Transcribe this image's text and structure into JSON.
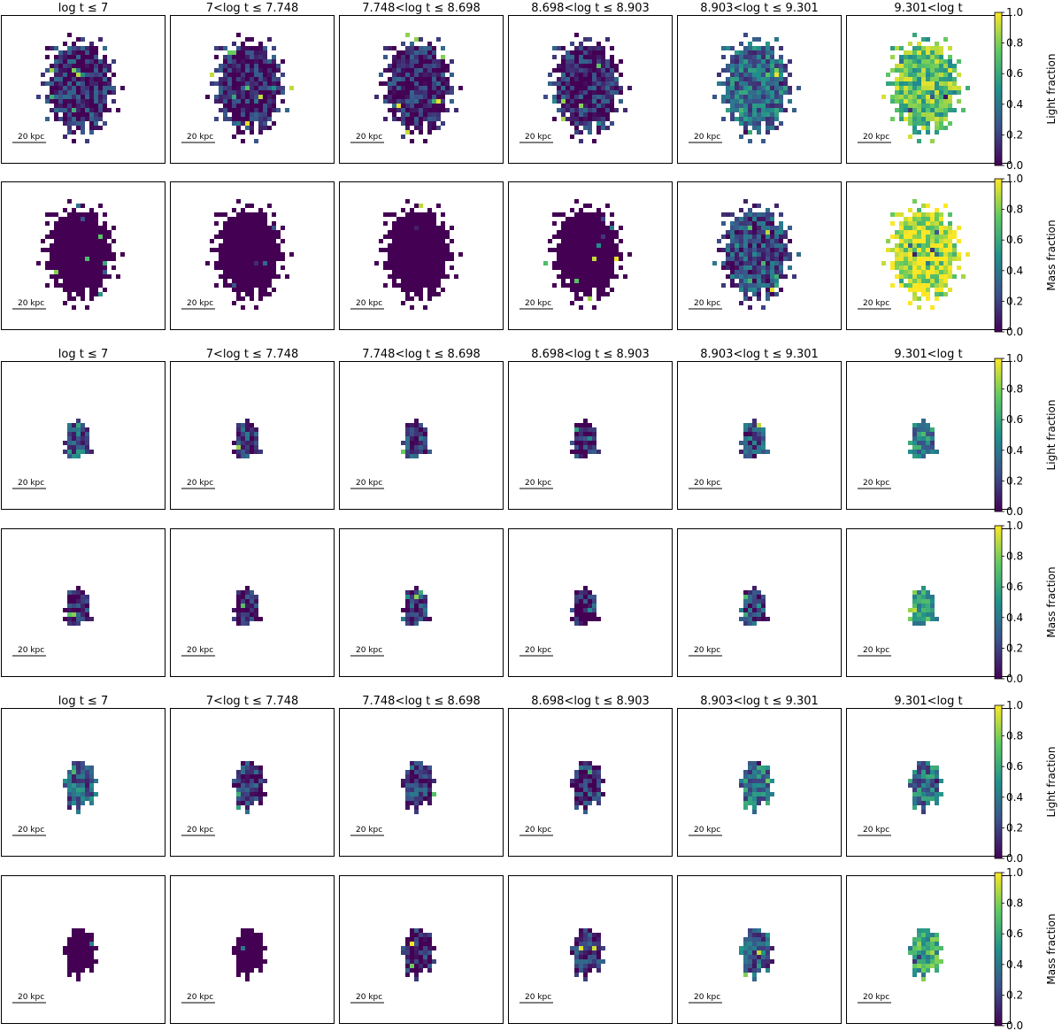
{
  "chart_data": {
    "type": "heatmap",
    "layout": "6 rows x 6 columns of pixel maps, each pair of rows (light fraction, mass fraction) belongs to one galaxy",
    "age_bins": [
      "log t ≤ 7",
      "7<log t ≤ 7.748",
      "7.748<log t ≤ 8.698",
      "8.698<log t ≤ 8.903",
      "8.903<log t ≤ 9.301",
      "9.301<log t"
    ],
    "scalebar_label": "20 kpc",
    "colormap": "viridis",
    "colorbar": {
      "ticks": [
        "0.0",
        "0.2",
        "0.4",
        "0.6",
        "0.8",
        "1.0"
      ],
      "range": [
        0.0,
        1.0
      ]
    },
    "rows": [
      {
        "galaxy": 1,
        "quantity": "Light fraction",
        "show_titles": true,
        "mean_fraction": [
          0.12,
          0.08,
          0.1,
          0.1,
          0.35,
          0.72
        ]
      },
      {
        "galaxy": 1,
        "quantity": "Mass fraction",
        "show_titles": false,
        "mean_fraction": [
          0.01,
          0.01,
          0.01,
          0.02,
          0.22,
          0.9
        ]
      },
      {
        "galaxy": 2,
        "quantity": "Light fraction",
        "show_titles": true,
        "mean_fraction": [
          0.3,
          0.18,
          0.15,
          0.1,
          0.25,
          0.45
        ]
      },
      {
        "galaxy": 2,
        "quantity": "Mass fraction",
        "show_titles": false,
        "mean_fraction": [
          0.08,
          0.06,
          0.14,
          0.05,
          0.2,
          0.62
        ]
      },
      {
        "galaxy": 3,
        "quantity": "Light fraction",
        "show_titles": true,
        "mean_fraction": [
          0.32,
          0.12,
          0.18,
          0.14,
          0.38,
          0.38
        ]
      },
      {
        "galaxy": 3,
        "quantity": "Mass fraction",
        "show_titles": false,
        "mean_fraction": [
          0.01,
          0.01,
          0.08,
          0.12,
          0.3,
          0.62
        ]
      }
    ]
  },
  "colors": {
    "viridis_stops": [
      "#440154",
      "#3b528b",
      "#21918c",
      "#5ec962",
      "#fde725"
    ]
  }
}
